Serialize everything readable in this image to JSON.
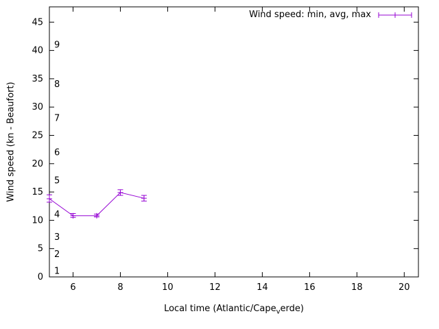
{
  "chart_data": {
    "type": "line",
    "title": "",
    "legend_label": "Wind speed: min, avg, max",
    "legend_position": "top-right-inside",
    "grid": false,
    "background": "#ffffff",
    "ylabel": "Wind speed (kn - Beaufort)",
    "xlabel_parts": {
      "prefix": "Local time (Atlantic/Cape",
      "subscript": "v",
      "suffix": "erde)"
    },
    "xlim": [
      5,
      20.6
    ],
    "ylim": [
      0,
      47.7
    ],
    "xticks": [
      6,
      8,
      10,
      12,
      14,
      16,
      18,
      20
    ],
    "yticks": [
      0,
      5,
      10,
      15,
      20,
      25,
      30,
      35,
      40,
      45
    ],
    "beaufort_scale_labels": [
      {
        "label": "1",
        "kn": 1
      },
      {
        "label": "2",
        "kn": 4
      },
      {
        "label": "3",
        "kn": 7
      },
      {
        "label": "4",
        "kn": 11
      },
      {
        "label": "5",
        "kn": 17
      },
      {
        "label": "6",
        "kn": 22
      },
      {
        "label": "7",
        "kn": 28
      },
      {
        "label": "8",
        "kn": 34
      },
      {
        "label": "9",
        "kn": 41
      }
    ],
    "series": [
      {
        "name": "Wind speed: min, avg, max",
        "color": "#9400d3",
        "x": [
          5,
          6,
          7,
          8,
          9
        ],
        "min": [
          13.2,
          10.5,
          10.6,
          14.4,
          13.4
        ],
        "avg": [
          13.8,
          10.8,
          10.8,
          14.9,
          13.9
        ],
        "max": [
          14.5,
          11.2,
          11.1,
          15.4,
          14.4
        ]
      }
    ]
  }
}
